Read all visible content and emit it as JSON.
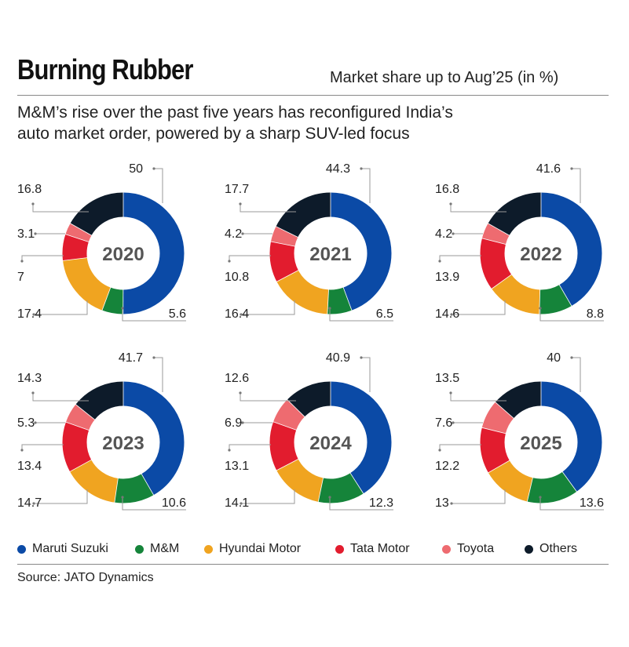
{
  "header": {
    "title": "Burning Rubber",
    "unit_note": "Market share up to Aug’25 (in %)",
    "subtitle_line1": "M&M’s rise over the past five years has reconfigured India’s",
    "subtitle_line2": "auto market order, powered by a sharp SUV-led focus"
  },
  "colors": {
    "Maruti Suzuki": "#0b4aa6",
    "M&M": "#15843a",
    "Hyundai Motor": "#f0a420",
    "Tata Motor": "#e21c2e",
    "Toyota": "#ee6b70",
    "Others": "#0d1b2a"
  },
  "legend": [
    {
      "label": "Maruti Suzuki",
      "color": "#0b4aa6"
    },
    {
      "label": "M&M",
      "color": "#15843a"
    },
    {
      "label": "Hyundai Motor",
      "color": "#f0a420"
    },
    {
      "label": "Tata Motor",
      "color": "#e21c2e"
    },
    {
      "label": "Toyota",
      "color": "#ee6b70"
    },
    {
      "label": "Others",
      "color": "#0d1b2a"
    }
  ],
  "chart_data": [
    {
      "type": "pie",
      "subtype": "donut",
      "title": "2020",
      "categories": [
        "Maruti Suzuki",
        "M&M",
        "Hyundai Motor",
        "Tata Motor",
        "Toyota",
        "Others"
      ],
      "values": [
        50,
        5.6,
        17.4,
        7,
        3.1,
        16.8
      ]
    },
    {
      "type": "pie",
      "subtype": "donut",
      "title": "2021",
      "categories": [
        "Maruti Suzuki",
        "M&M",
        "Hyundai Motor",
        "Tata Motor",
        "Toyota",
        "Others"
      ],
      "values": [
        44.3,
        6.5,
        16.4,
        10.8,
        4.2,
        17.7
      ]
    },
    {
      "type": "pie",
      "subtype": "donut",
      "title": "2022",
      "categories": [
        "Maruti Suzuki",
        "M&M",
        "Hyundai Motor",
        "Tata Motor",
        "Toyota",
        "Others"
      ],
      "values": [
        41.6,
        8.8,
        14.6,
        13.9,
        4.2,
        16.8
      ]
    },
    {
      "type": "pie",
      "subtype": "donut",
      "title": "2023",
      "categories": [
        "Maruti Suzuki",
        "M&M",
        "Hyundai Motor",
        "Tata Motor",
        "Toyota",
        "Others"
      ],
      "values": [
        41.7,
        10.6,
        14.7,
        13.4,
        5.3,
        14.3
      ]
    },
    {
      "type": "pie",
      "subtype": "donut",
      "title": "2024",
      "categories": [
        "Maruti Suzuki",
        "M&M",
        "Hyundai Motor",
        "Tata Motor",
        "Toyota",
        "Others"
      ],
      "values": [
        40.9,
        12.3,
        14.1,
        13.1,
        6.9,
        12.6
      ]
    },
    {
      "type": "pie",
      "subtype": "donut",
      "title": "2025",
      "categories": [
        "Maruti Suzuki",
        "M&M",
        "Hyundai Motor",
        "Tata Motor",
        "Toyota",
        "Others"
      ],
      "values": [
        40,
        13.6,
        13,
        12.2,
        7.6,
        13.5
      ]
    }
  ],
  "source": "Source: JATO Dynamics"
}
